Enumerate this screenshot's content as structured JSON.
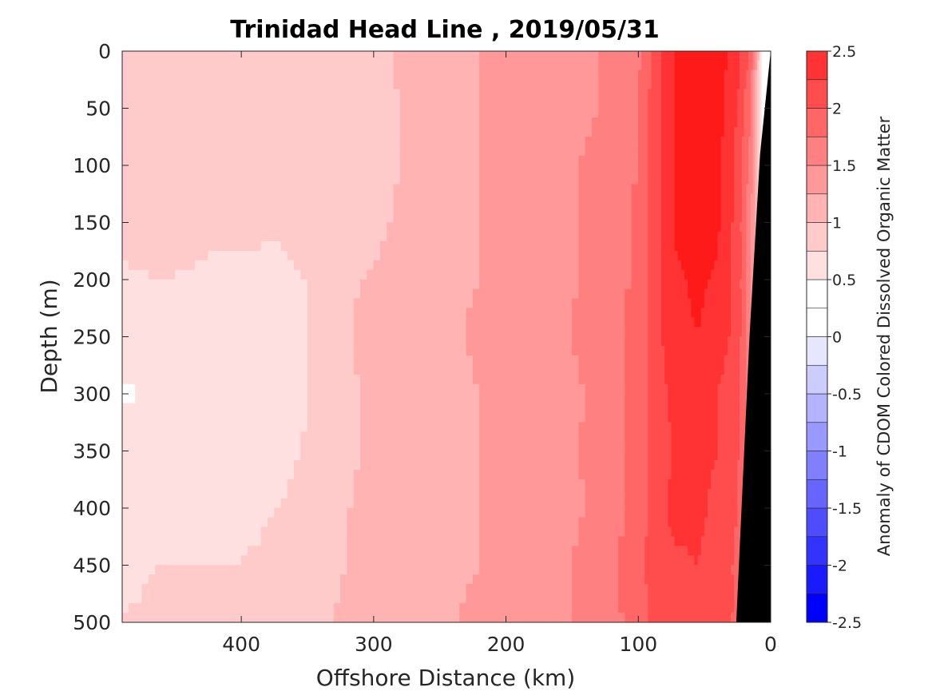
{
  "chart_data": {
    "type": "heatmap",
    "title": "Trinidad Head Line , 2019/05/31",
    "xlabel": "Offshore Distance (km)",
    "ylabel": "Depth (m)",
    "xlim": [
      490,
      0
    ],
    "ylim": [
      0,
      500
    ],
    "x_reversed": true,
    "y_reversed": true,
    "xticks": [
      400,
      300,
      200,
      100,
      0
    ],
    "yticks": [
      0,
      50,
      100,
      150,
      200,
      250,
      300,
      350,
      400,
      450,
      500
    ],
    "colorbar": {
      "label": "Anomaly of CDOM Colored Dissolved Organic Matter",
      "range": [
        -2.5,
        2.5
      ],
      "levels": [
        -2.5,
        -2.25,
        -2.0,
        -1.75,
        -1.5,
        -1.25,
        -1.0,
        -0.75,
        -0.5,
        -0.25,
        0.0,
        0.25,
        0.5,
        0.75,
        1.0,
        1.25,
        1.5,
        1.75,
        2.0,
        2.25,
        2.5
      ],
      "ticks": [
        "2.5",
        "2",
        "1.5",
        "1",
        "0.5",
        "0",
        "-0.5",
        "-1",
        "-1.5",
        "-2",
        "-2.5"
      ],
      "colors": [
        "#0000ff",
        "#1a1aff",
        "#3333ff",
        "#4d4dff",
        "#6666ff",
        "#8080ff",
        "#9999ff",
        "#b3b3ff",
        "#ccccff",
        "#e6e6ff",
        "#ffffff",
        "#ffffff",
        "#ffe0e0",
        "#ffcaca",
        "#ffb3b3",
        "#ff9999",
        "#ff8080",
        "#ff6666",
        "#ff4d4d",
        "#ff3333",
        "#ff1a1a",
        "#ff0000"
      ]
    },
    "grid": false,
    "bathymetry": {
      "color": "#000000",
      "bottom_distance_km": [
        0,
        8,
        16,
        20,
        26
      ],
      "bottom_depth_m": [
        0,
        90,
        250,
        350,
        500
      ]
    },
    "depths_m": [
      0,
      50,
      100,
      150,
      200,
      250,
      300,
      350,
      400,
      450,
      500
    ],
    "distances_km": [
      490,
      460,
      430,
      400,
      370,
      340,
      310,
      280,
      250,
      220,
      190,
      160,
      130,
      100,
      85,
      70,
      55,
      40,
      25,
      15,
      5
    ],
    "anomaly": [
      [
        0.65,
        0.6,
        0.7,
        0.65,
        0.6,
        0.75,
        0.5,
        0.8,
        0.95,
        1.0,
        1.05,
        1.1,
        1.25,
        1.45,
        1.9,
        2.3,
        2.45,
        2.4,
        2.1,
        1.7,
        0.1
      ],
      [
        0.65,
        0.65,
        0.6,
        0.65,
        0.65,
        0.7,
        0.55,
        0.75,
        0.95,
        1.0,
        1.05,
        1.15,
        1.25,
        1.5,
        1.95,
        2.3,
        2.4,
        2.35,
        2.0,
        1.5,
        0.1
      ],
      [
        0.65,
        0.6,
        0.65,
        0.6,
        0.65,
        0.7,
        0.6,
        0.75,
        0.95,
        1.0,
        1.1,
        1.2,
        1.3,
        1.5,
        1.95,
        2.3,
        2.45,
        2.35,
        1.9,
        1.4,
        0.1
      ],
      [
        0.6,
        0.65,
        0.6,
        0.65,
        0.6,
        0.7,
        0.6,
        0.8,
        0.95,
        1.0,
        1.1,
        1.2,
        1.3,
        1.55,
        1.95,
        2.35,
        2.45,
        2.3,
        1.9,
        1.3,
        0.1
      ],
      [
        0.45,
        0.5,
        0.45,
        0.3,
        0.35,
        0.6,
        0.75,
        0.85,
        0.95,
        1.0,
        1.1,
        1.2,
        1.3,
        1.55,
        1.95,
        2.2,
        2.3,
        2.2,
        1.9,
        1.3,
        0.1
      ],
      [
        0.45,
        0.4,
        0.35,
        0.3,
        0.35,
        0.55,
        0.8,
        0.9,
        0.9,
        1.05,
        1.15,
        1.2,
        1.35,
        1.6,
        1.95,
        2.2,
        2.25,
        2.15,
        1.9,
        1.3,
        0.1
      ],
      [
        0.2,
        0.3,
        0.35,
        0.35,
        0.4,
        0.55,
        0.75,
        0.85,
        0.9,
        1.0,
        1.05,
        1.15,
        1.3,
        1.6,
        1.9,
        2.1,
        2.1,
        2.0,
        1.8,
        1.3,
        0.1
      ],
      [
        0.4,
        0.35,
        0.4,
        0.35,
        0.45,
        0.55,
        0.75,
        0.85,
        0.9,
        1.0,
        1.05,
        1.15,
        1.35,
        1.6,
        1.9,
        2.05,
        2.05,
        2.0,
        1.8,
        1.3,
        0.1
      ],
      [
        0.3,
        0.35,
        0.4,
        0.45,
        0.5,
        0.6,
        0.8,
        0.85,
        0.9,
        1.0,
        1.05,
        1.15,
        1.3,
        1.6,
        1.9,
        2.1,
        2.05,
        1.95,
        1.75,
        1.3,
        0.1
      ],
      [
        0.45,
        0.5,
        0.5,
        0.5,
        0.55,
        0.65,
        0.8,
        0.9,
        0.95,
        1.0,
        1.05,
        1.2,
        1.35,
        1.65,
        1.95,
        1.95,
        2.0,
        1.9,
        1.7,
        1.3,
        0.1
      ],
      [
        0.5,
        0.55,
        0.55,
        0.6,
        0.6,
        0.7,
        0.85,
        0.9,
        0.95,
        1.05,
        1.1,
        1.2,
        1.35,
        1.6,
        1.85,
        1.95,
        2.0,
        1.9,
        1.7,
        1.3,
        0.1
      ]
    ]
  }
}
